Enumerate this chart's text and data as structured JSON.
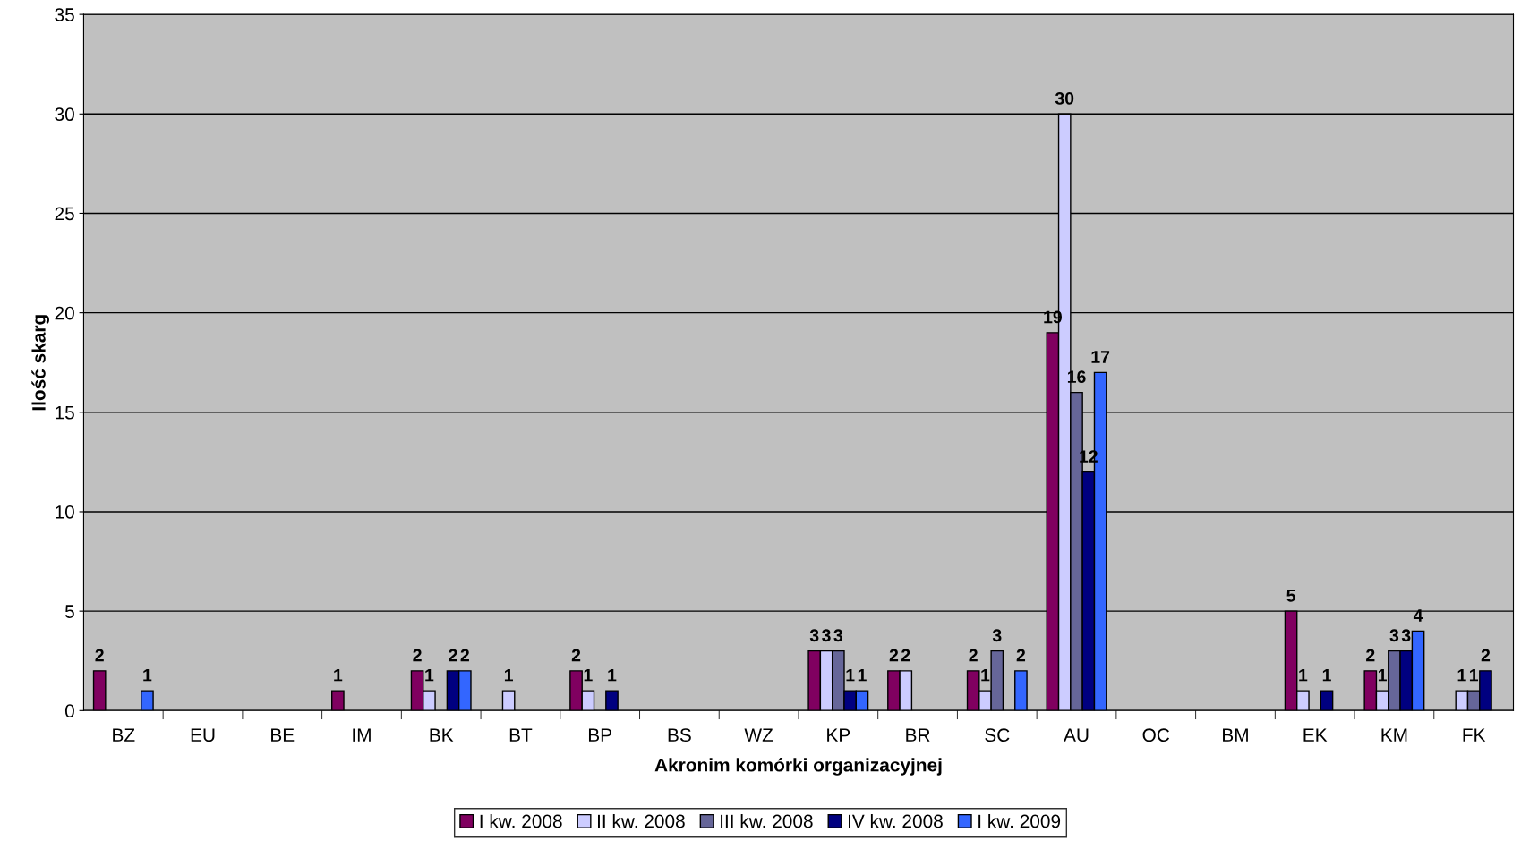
{
  "chart_data": {
    "type": "bar",
    "xlabel": "Akronim komórki organizacyjnej",
    "ylabel": "Ilość skarg",
    "categories": [
      "BZ",
      "EU",
      "BE",
      "IM",
      "BK",
      "BT",
      "BP",
      "BS",
      "WZ",
      "KP",
      "BR",
      "SC",
      "AU",
      "OC",
      "BM",
      "EK",
      "KM",
      "FK"
    ],
    "series": [
      {
        "name": "I kw. 2008",
        "color": "#800060",
        "values": [
          2,
          null,
          null,
          1,
          2,
          null,
          2,
          null,
          null,
          3,
          2,
          2,
          19,
          null,
          null,
          5,
          2,
          null
        ],
        "value_labels": [
          "2",
          null,
          null,
          "1",
          "2",
          null,
          "2",
          null,
          null,
          "3",
          "2",
          "2",
          "19",
          null,
          null,
          "5",
          "2",
          null
        ]
      },
      {
        "name": "II kw. 2008",
        "color": "#ccccff",
        "values": [
          null,
          null,
          null,
          null,
          1,
          1,
          1,
          null,
          null,
          3,
          2,
          1,
          30,
          null,
          null,
          1,
          1,
          1
        ],
        "value_labels": [
          null,
          null,
          null,
          null,
          "1",
          "1",
          "1",
          null,
          null,
          "3",
          "2",
          "1",
          "30",
          null,
          null,
          "1",
          "1",
          "1"
        ]
      },
      {
        "name": "III kw. 2008",
        "color": "#666699",
        "values": [
          null,
          null,
          null,
          null,
          null,
          null,
          null,
          null,
          null,
          3,
          null,
          3,
          16,
          null,
          null,
          null,
          3,
          1
        ],
        "value_labels": [
          null,
          null,
          null,
          null,
          null,
          null,
          null,
          null,
          null,
          "3",
          null,
          "3",
          "16",
          null,
          null,
          null,
          "3",
          "1"
        ]
      },
      {
        "name": "IV kw. 2008",
        "color": "#000080",
        "values": [
          null,
          null,
          null,
          null,
          2,
          null,
          1,
          null,
          null,
          1,
          null,
          null,
          12,
          null,
          null,
          1,
          3,
          2
        ],
        "value_labels": [
          null,
          null,
          null,
          null,
          "2",
          null,
          "1",
          null,
          null,
          "1",
          null,
          null,
          "12",
          null,
          null,
          "1",
          "3",
          "2"
        ]
      },
      {
        "name": "I kw. 2009",
        "color": "#3366ff",
        "values": [
          1,
          null,
          null,
          null,
          2,
          null,
          null,
          null,
          null,
          1,
          null,
          2,
          17,
          null,
          null,
          null,
          4,
          null
        ],
        "value_labels": [
          "1",
          null,
          null,
          null,
          "2",
          null,
          null,
          null,
          null,
          "1",
          null,
          "2",
          "17",
          null,
          null,
          null,
          "4",
          null
        ]
      }
    ],
    "ylim": [
      0,
      35
    ],
    "yticks": [
      0,
      5,
      10,
      15,
      20,
      25,
      30,
      35
    ],
    "grid": "y",
    "legend": "bottom"
  }
}
